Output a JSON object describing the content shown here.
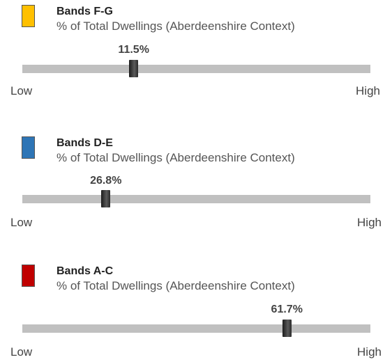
{
  "chart_data": [
    {
      "type": "bar",
      "title": "Bands F-G",
      "subtitle": "% of Total Dwellings (Aberdeenshire Context)",
      "value": 11.5,
      "value_label": "11.5%",
      "color": "#FFC000",
      "scale_min_label": "Low",
      "scale_max_label": "High",
      "position_fraction": 0.32
    },
    {
      "type": "bar",
      "title": "Bands D-E",
      "subtitle": "% of Total Dwellings (Aberdeenshire Context)",
      "value": 26.8,
      "value_label": "26.8%",
      "color": "#2E75B6",
      "scale_min_label": "Low",
      "scale_max_label": "High",
      "position_fraction": 0.24
    },
    {
      "type": "bar",
      "title": "Bands A-C",
      "subtitle": "% of Total Dwellings (Aberdeenshire Context)",
      "value": 61.7,
      "value_label": "61.7%",
      "color": "#C00000",
      "scale_min_label": "Low",
      "scale_max_label": "High",
      "position_fraction": 0.76
    }
  ]
}
